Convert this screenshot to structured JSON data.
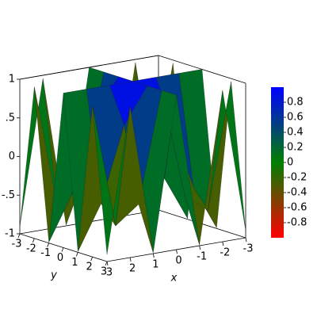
{
  "chart_data": {
    "type": "surface",
    "x": [
      -3,
      -2,
      -1,
      0,
      1,
      2,
      3
    ],
    "y": [
      -3,
      -2,
      -1,
      0,
      1,
      2,
      3
    ],
    "z": [
      [
        -0.91,
        0.96,
        -0.99,
        1,
        -0.99,
        0.96,
        -0.91
      ],
      [
        0.96,
        -0.65,
        -0.42,
        1,
        -0.42,
        -0.65,
        0.96
      ],
      [
        -0.99,
        -0.42,
        0.54,
        1,
        0.54,
        -0.42,
        -0.99
      ],
      [
        1,
        1,
        1,
        1,
        1,
        1,
        1
      ],
      [
        -0.99,
        -0.42,
        0.54,
        1,
        0.54,
        -0.42,
        -0.99
      ],
      [
        0.96,
        -0.65,
        -0.42,
        1,
        -0.42,
        -0.65,
        0.96
      ],
      [
        -0.91,
        0.96,
        -0.99,
        1,
        -0.99,
        0.96,
        -0.91
      ]
    ],
    "xlim": [
      -3,
      3
    ],
    "ylim": [
      -3,
      3
    ],
    "zlim": [
      -1,
      1
    ],
    "xticks": [
      3,
      2,
      1,
      0,
      -1,
      -2,
      -3
    ],
    "yticks": [
      -3,
      -2,
      -1,
      0,
      1,
      2,
      3
    ],
    "zticks": [
      1,
      {
        "value": 0.5,
        "label": ".5"
      },
      0,
      {
        "value": -0.5,
        "label": "-.5"
      },
      -1
    ],
    "x_label": "x",
    "y_label": "y",
    "colormap": [
      "#ff0000",
      "#008000",
      "#0000ff"
    ],
    "colorbar": {
      "lim": [
        -1,
        1
      ],
      "ticks": [
        0.8,
        0.6,
        0.4,
        0.2,
        0,
        -0.2,
        -0.4,
        -0.6,
        -0.8
      ]
    }
  }
}
